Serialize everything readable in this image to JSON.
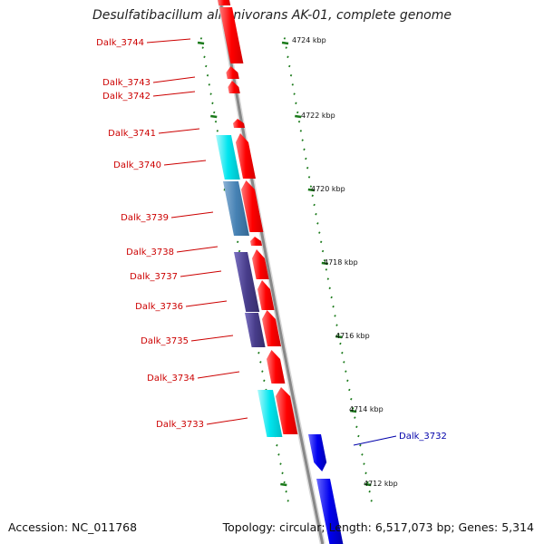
{
  "title": "Desulfatibacillum alkenivorans AK-01, complete genome",
  "footer": {
    "accession": "Accession: NC_011768",
    "stats": "Topology: circular; Length: 6,517,073 bp; Genes: 5,314"
  },
  "colors": {
    "forward_gene": "#ff0000",
    "reverse_gene": "#0000ee",
    "tick": "#1a7a1a",
    "label_forward": "#cc0000",
    "label_reverse": "#0000aa",
    "backbone": "#888888",
    "cog_cyan": "#00e5ee",
    "cog_steelblue": "#4682b4",
    "cog_slateblue": "#483d8b"
  },
  "kbp_labels": [
    "4724 kbp",
    "4722 kbp",
    "4720 kbp",
    "4718 kbp",
    "4716 kbp",
    "4714 kbp",
    "4712 kbp"
  ],
  "genes": [
    {
      "name": "Dalk_3744",
      "strand": "forward",
      "cog": "none"
    },
    {
      "name": "Dalk_3743",
      "strand": "forward",
      "cog": "none"
    },
    {
      "name": "Dalk_3742",
      "strand": "forward",
      "cog": "none"
    },
    {
      "name": "Dalk_3741",
      "strand": "forward",
      "cog": "none"
    },
    {
      "name": "Dalk_3740",
      "strand": "forward",
      "cog": "cyan"
    },
    {
      "name": "Dalk_3739",
      "strand": "forward",
      "cog": "steelblue"
    },
    {
      "name": "Dalk_3738",
      "strand": "forward",
      "cog": "none"
    },
    {
      "name": "Dalk_3737",
      "strand": "forward",
      "cog": "slateblue"
    },
    {
      "name": "Dalk_3736",
      "strand": "forward",
      "cog": "slateblue"
    },
    {
      "name": "Dalk_3735",
      "strand": "forward",
      "cog": "slateblue"
    },
    {
      "name": "Dalk_3734",
      "strand": "forward",
      "cog": "none"
    },
    {
      "name": "Dalk_3733",
      "strand": "forward",
      "cog": "cyan"
    },
    {
      "name": "Dalk_3732",
      "strand": "reverse",
      "cog": "none"
    }
  ]
}
